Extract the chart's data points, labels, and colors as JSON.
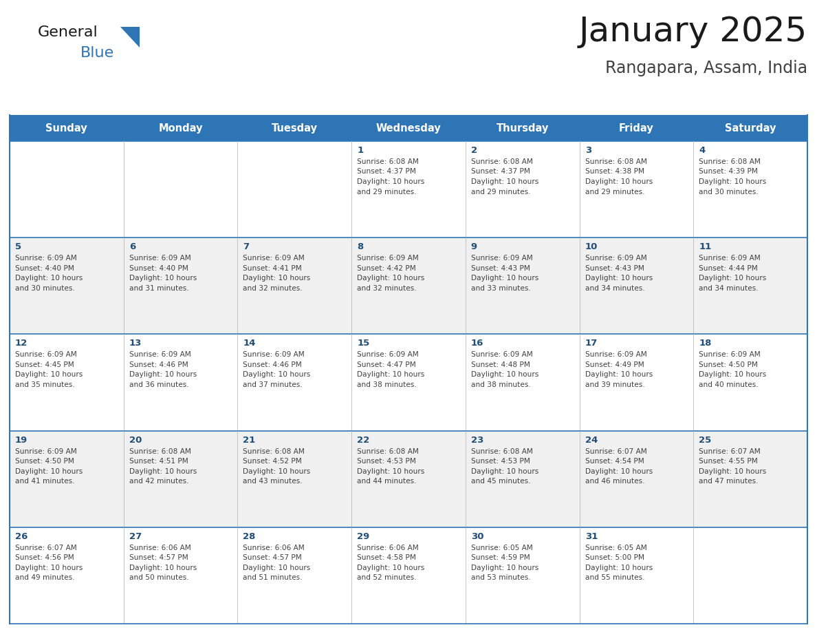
{
  "title": "January 2025",
  "subtitle": "Rangapara, Assam, India",
  "header_bg": "#2E75B6",
  "header_text_color": "#FFFFFF",
  "day_names": [
    "Sunday",
    "Monday",
    "Tuesday",
    "Wednesday",
    "Thursday",
    "Friday",
    "Saturday"
  ],
  "white_row_bg": "#FFFFFF",
  "gray_row_bg": "#F0F0F0",
  "border_color": "#2E75B6",
  "cell_border_color": "#AAAAAA",
  "date_color": "#1F4E79",
  "text_color": "#404040",
  "logo_general_color": "#1a1a1a",
  "logo_blue_color": "#2E75B6",
  "logo_triangle_color": "#2E75B6",
  "calendar": [
    [
      null,
      null,
      null,
      {
        "day": 1,
        "sunrise": "6:08 AM",
        "sunset": "4:37 PM",
        "daylight": "10 hours and 29 minutes."
      },
      {
        "day": 2,
        "sunrise": "6:08 AM",
        "sunset": "4:37 PM",
        "daylight": "10 hours and 29 minutes."
      },
      {
        "day": 3,
        "sunrise": "6:08 AM",
        "sunset": "4:38 PM",
        "daylight": "10 hours and 29 minutes."
      },
      {
        "day": 4,
        "sunrise": "6:08 AM",
        "sunset": "4:39 PM",
        "daylight": "10 hours and 30 minutes."
      }
    ],
    [
      {
        "day": 5,
        "sunrise": "6:09 AM",
        "sunset": "4:40 PM",
        "daylight": "10 hours and 30 minutes."
      },
      {
        "day": 6,
        "sunrise": "6:09 AM",
        "sunset": "4:40 PM",
        "daylight": "10 hours and 31 minutes."
      },
      {
        "day": 7,
        "sunrise": "6:09 AM",
        "sunset": "4:41 PM",
        "daylight": "10 hours and 32 minutes."
      },
      {
        "day": 8,
        "sunrise": "6:09 AM",
        "sunset": "4:42 PM",
        "daylight": "10 hours and 32 minutes."
      },
      {
        "day": 9,
        "sunrise": "6:09 AM",
        "sunset": "4:43 PM",
        "daylight": "10 hours and 33 minutes."
      },
      {
        "day": 10,
        "sunrise": "6:09 AM",
        "sunset": "4:43 PM",
        "daylight": "10 hours and 34 minutes."
      },
      {
        "day": 11,
        "sunrise": "6:09 AM",
        "sunset": "4:44 PM",
        "daylight": "10 hours and 34 minutes."
      }
    ],
    [
      {
        "day": 12,
        "sunrise": "6:09 AM",
        "sunset": "4:45 PM",
        "daylight": "10 hours and 35 minutes."
      },
      {
        "day": 13,
        "sunrise": "6:09 AM",
        "sunset": "4:46 PM",
        "daylight": "10 hours and 36 minutes."
      },
      {
        "day": 14,
        "sunrise": "6:09 AM",
        "sunset": "4:46 PM",
        "daylight": "10 hours and 37 minutes."
      },
      {
        "day": 15,
        "sunrise": "6:09 AM",
        "sunset": "4:47 PM",
        "daylight": "10 hours and 38 minutes."
      },
      {
        "day": 16,
        "sunrise": "6:09 AM",
        "sunset": "4:48 PM",
        "daylight": "10 hours and 38 minutes."
      },
      {
        "day": 17,
        "sunrise": "6:09 AM",
        "sunset": "4:49 PM",
        "daylight": "10 hours and 39 minutes."
      },
      {
        "day": 18,
        "sunrise": "6:09 AM",
        "sunset": "4:50 PM",
        "daylight": "10 hours and 40 minutes."
      }
    ],
    [
      {
        "day": 19,
        "sunrise": "6:09 AM",
        "sunset": "4:50 PM",
        "daylight": "10 hours and 41 minutes."
      },
      {
        "day": 20,
        "sunrise": "6:08 AM",
        "sunset": "4:51 PM",
        "daylight": "10 hours and 42 minutes."
      },
      {
        "day": 21,
        "sunrise": "6:08 AM",
        "sunset": "4:52 PM",
        "daylight": "10 hours and 43 minutes."
      },
      {
        "day": 22,
        "sunrise": "6:08 AM",
        "sunset": "4:53 PM",
        "daylight": "10 hours and 44 minutes."
      },
      {
        "day": 23,
        "sunrise": "6:08 AM",
        "sunset": "4:53 PM",
        "daylight": "10 hours and 45 minutes."
      },
      {
        "day": 24,
        "sunrise": "6:07 AM",
        "sunset": "4:54 PM",
        "daylight": "10 hours and 46 minutes."
      },
      {
        "day": 25,
        "sunrise": "6:07 AM",
        "sunset": "4:55 PM",
        "daylight": "10 hours and 47 minutes."
      }
    ],
    [
      {
        "day": 26,
        "sunrise": "6:07 AM",
        "sunset": "4:56 PM",
        "daylight": "10 hours and 49 minutes."
      },
      {
        "day": 27,
        "sunrise": "6:06 AM",
        "sunset": "4:57 PM",
        "daylight": "10 hours and 50 minutes."
      },
      {
        "day": 28,
        "sunrise": "6:06 AM",
        "sunset": "4:57 PM",
        "daylight": "10 hours and 51 minutes."
      },
      {
        "day": 29,
        "sunrise": "6:06 AM",
        "sunset": "4:58 PM",
        "daylight": "10 hours and 52 minutes."
      },
      {
        "day": 30,
        "sunrise": "6:05 AM",
        "sunset": "4:59 PM",
        "daylight": "10 hours and 53 minutes."
      },
      {
        "day": 31,
        "sunrise": "6:05 AM",
        "sunset": "5:00 PM",
        "daylight": "10 hours and 55 minutes."
      },
      null
    ]
  ]
}
